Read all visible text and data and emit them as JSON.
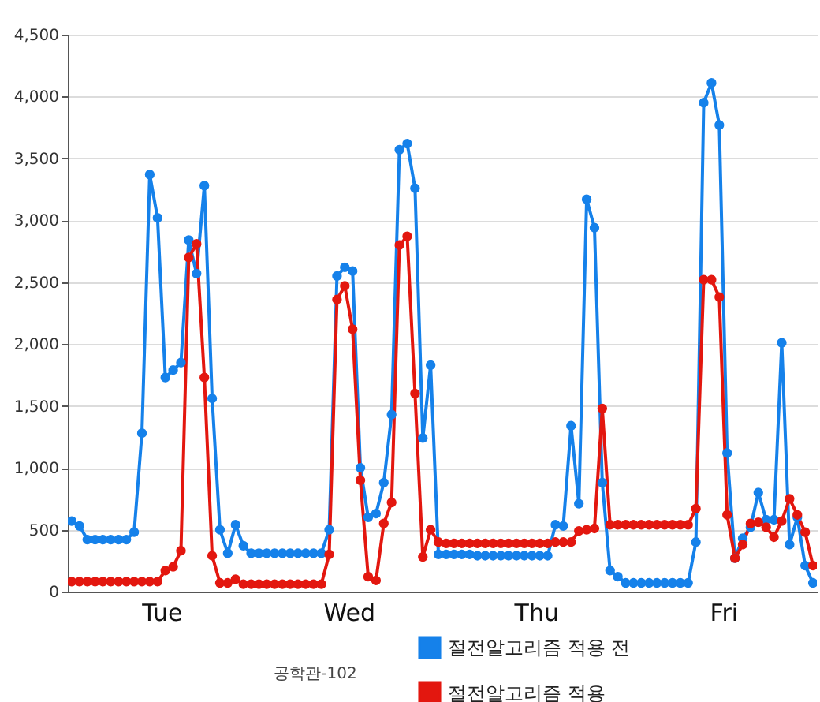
{
  "chart_data": {
    "type": "line",
    "categories": [
      null,
      null,
      null,
      null,
      null,
      null,
      null,
      null,
      null,
      null,
      null,
      null,
      "Tue",
      null,
      null,
      null,
      null,
      null,
      null,
      null,
      null,
      null,
      null,
      null,
      null,
      null,
      null,
      null,
      null,
      null,
      null,
      null,
      null,
      null,
      null,
      null,
      "Wed",
      null,
      null,
      null,
      null,
      null,
      null,
      null,
      null,
      null,
      null,
      null,
      null,
      null,
      null,
      null,
      null,
      null,
      null,
      null,
      null,
      null,
      null,
      null,
      "Thu",
      null,
      null,
      null,
      null,
      null,
      null,
      null,
      null,
      null,
      null,
      null,
      null,
      null,
      null,
      null,
      null,
      null,
      null,
      null,
      null,
      null,
      null,
      null,
      "Fri",
      null,
      null,
      null,
      null,
      null,
      null,
      null,
      null,
      null,
      null,
      null
    ],
    "series": [
      {
        "name": "절전알고리즘 적용 전",
        "color": "#1581ea",
        "values": [
          570,
          530,
          420,
          420,
          420,
          420,
          420,
          420,
          480,
          1280,
          3370,
          3020,
          1730,
          1790,
          1850,
          2840,
          2570,
          3280,
          1560,
          500,
          310,
          540,
          370,
          310,
          310,
          310,
          310,
          310,
          310,
          310,
          310,
          310,
          310,
          500,
          2550,
          2620,
          2590,
          1000,
          600,
          630,
          880,
          1430,
          3570,
          3620,
          3260,
          1240,
          1830,
          300,
          300,
          300,
          300,
          300,
          290,
          290,
          290,
          290,
          290,
          290,
          290,
          290,
          290,
          290,
          540,
          530,
          1340,
          710,
          3170,
          2940,
          880,
          170,
          120,
          70,
          70,
          70,
          70,
          70,
          70,
          70,
          70,
          70,
          400,
          3950,
          4110,
          3770,
          1120,
          270,
          430,
          520,
          800,
          580,
          580,
          2010,
          380,
          600,
          210,
          70
        ]
      },
      {
        "name": "절전알고리즘 적용",
        "color": "#e3170f",
        "values": [
          80,
          80,
          80,
          80,
          80,
          80,
          80,
          80,
          80,
          80,
          80,
          80,
          170,
          200,
          330,
          2700,
          2810,
          1730,
          290,
          70,
          70,
          100,
          60,
          60,
          60,
          60,
          60,
          60,
          60,
          60,
          60,
          60,
          60,
          300,
          2360,
          2470,
          2120,
          900,
          120,
          90,
          550,
          720,
          2800,
          2870,
          1600,
          280,
          500,
          400,
          390,
          390,
          390,
          390,
          390,
          390,
          390,
          390,
          390,
          390,
          390,
          390,
          390,
          390,
          400,
          400,
          400,
          490,
          500,
          510,
          1480,
          540,
          540,
          540,
          540,
          540,
          540,
          540,
          540,
          540,
          540,
          540,
          670,
          2520,
          2520,
          2380,
          620,
          270,
          380,
          550,
          560,
          520,
          440,
          570,
          750,
          620,
          480,
          210
        ]
      }
    ],
    "ylim": [
      0,
      4500
    ],
    "yticks": [
      0,
      500,
      {
        "value": 1000,
        "label": "1,000"
      },
      {
        "value": 1500,
        "label": "1,500"
      },
      {
        "value": 2000,
        "label": "2,000"
      },
      {
        "value": 2500,
        "label": "2,500"
      },
      {
        "value": 3000,
        "label": "3,000"
      },
      {
        "value": 3500,
        "label": "3,500"
      },
      {
        "value": 4000,
        "label": "4,000"
      },
      {
        "value": 4500,
        "label": "4,500"
      }
    ],
    "grid": "y",
    "legend": "bottom",
    "marker": "circle",
    "line_style": "solid",
    "annotations": [
      "공학관-102"
    ]
  }
}
